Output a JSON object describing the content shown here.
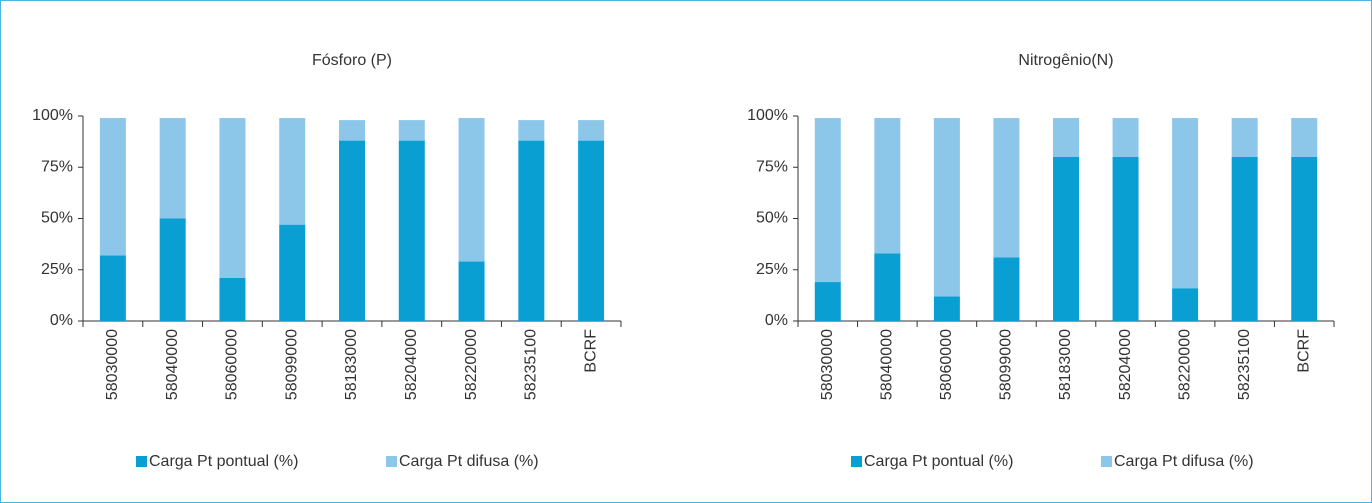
{
  "chart_data": [
    {
      "type": "stacked_bar",
      "title": "Fósforo (P)",
      "categories": [
        "58030000",
        "58040000",
        "58060000",
        "58099000",
        "58183000",
        "58204000",
        "58220000",
        "58235100",
        "BCRF"
      ],
      "series": [
        {
          "name": "Carga Pt pontual (%)",
          "color": "#0a9fd3",
          "values": [
            32,
            50,
            21,
            47,
            88,
            88,
            29,
            88,
            88
          ]
        },
        {
          "name": "Carga Pt difusa (%)",
          "color": "#8cc6e8",
          "values": [
            67,
            49,
            78,
            52,
            10,
            10,
            70,
            10,
            10
          ]
        }
      ],
      "ylim": [
        0,
        100
      ],
      "yticks": [
        {
          "value": 0,
          "label": "0%"
        },
        {
          "value": 25,
          "label": "25%"
        },
        {
          "value": 50,
          "label": "50%"
        },
        {
          "value": 75,
          "label": "75%"
        },
        {
          "value": 100,
          "label": "100%"
        }
      ]
    },
    {
      "type": "stacked_bar",
      "title": "Nitrogênio(N)",
      "categories": [
        "58030000",
        "58040000",
        "58060000",
        "58099000",
        "58183000",
        "58204000",
        "58220000",
        "58235100",
        "BCRF"
      ],
      "series": [
        {
          "name": "Carga Pt pontual (%)",
          "color": "#0a9fd3",
          "values": [
            19,
            33,
            12,
            31,
            80,
            80,
            16,
            80,
            80
          ]
        },
        {
          "name": "Carga Pt difusa (%)",
          "color": "#8cc6e8",
          "values": [
            80,
            66,
            87,
            68,
            19,
            19,
            83,
            19,
            19
          ]
        }
      ],
      "ylim": [
        0,
        100
      ],
      "yticks": [
        {
          "value": 0,
          "label": "0%"
        },
        {
          "value": 25,
          "label": "25%"
        },
        {
          "value": 50,
          "label": "50%"
        },
        {
          "value": 75,
          "label": "75%"
        },
        {
          "value": 100,
          "label": "100%"
        }
      ]
    }
  ]
}
